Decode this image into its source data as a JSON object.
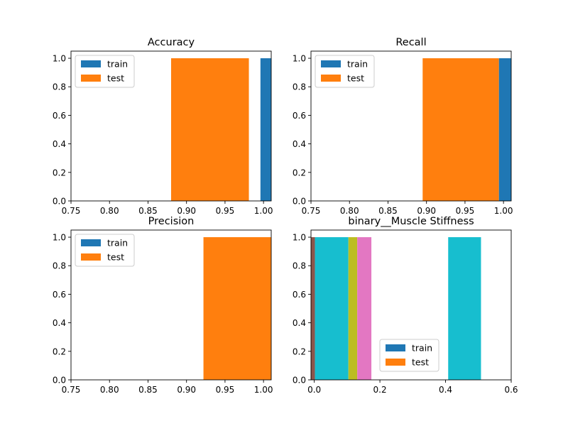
{
  "colors": {
    "train": "#1f77b4",
    "test": "#ff7f0e",
    "brown": "#8c564b",
    "cyan": "#17becf",
    "olive": "#bcbd22",
    "pink": "#e377c2"
  },
  "chart_data": [
    {
      "type": "bar",
      "title": "Accuracy",
      "xlim": [
        0.75,
        1.01
      ],
      "ylim": [
        0,
        1.05
      ],
      "xticks": [
        "0.75",
        "0.80",
        "0.85",
        "0.90",
        "0.95",
        "1.00"
      ],
      "yticks": [
        "0.0",
        "0.2",
        "0.4",
        "0.6",
        "0.8",
        "1.0"
      ],
      "legend": {
        "position": "upper-left",
        "entries": [
          "train",
          "test"
        ]
      },
      "series": [
        {
          "name": "train",
          "color": "train",
          "bins": [
            {
              "x0": 0.996,
              "x1": 1.01,
              "value": 1.0
            }
          ]
        },
        {
          "name": "test",
          "color": "test",
          "bins": [
            {
              "x0": 0.88,
              "x1": 0.981,
              "value": 1.0
            }
          ]
        }
      ]
    },
    {
      "type": "bar",
      "title": "Recall",
      "xlim": [
        0.75,
        1.01
      ],
      "ylim": [
        0,
        1.05
      ],
      "xticks": [
        "0.75",
        "0.80",
        "0.85",
        "0.90",
        "0.95",
        "1.00"
      ],
      "yticks": [
        "0.0",
        "0.2",
        "0.4",
        "0.6",
        "0.8",
        "1.0"
      ],
      "legend": {
        "position": "upper-left",
        "entries": [
          "train",
          "test"
        ]
      },
      "series": [
        {
          "name": "train",
          "color": "train",
          "bins": [
            {
              "x0": 0.994,
              "x1": 1.01,
              "value": 1.0
            }
          ]
        },
        {
          "name": "test",
          "color": "test",
          "bins": [
            {
              "x0": 0.895,
              "x1": 0.994,
              "value": 1.0
            }
          ]
        }
      ]
    },
    {
      "type": "bar",
      "title": "Precision",
      "xlim": [
        0.75,
        1.01
      ],
      "ylim": [
        0,
        1.05
      ],
      "xticks": [
        "0.75",
        "0.80",
        "0.85",
        "0.90",
        "0.95",
        "1.00"
      ],
      "yticks": [
        "0.0",
        "0.2",
        "0.4",
        "0.6",
        "0.8",
        "1.0"
      ],
      "legend": {
        "position": "upper-left",
        "entries": [
          "train",
          "test"
        ]
      },
      "series": [
        {
          "name": "train",
          "color": "train",
          "bins": []
        },
        {
          "name": "test",
          "color": "test",
          "bins": [
            {
              "x0": 0.922,
              "x1": 1.01,
              "value": 1.0
            }
          ]
        }
      ]
    },
    {
      "type": "bar",
      "title": "binary__Muscle Stiffness",
      "xlim": [
        -0.01,
        0.6
      ],
      "ylim": [
        0,
        1.05
      ],
      "xticks": [
        "0.0",
        "0.2",
        "0.4",
        "0.6"
      ],
      "yticks": [
        "0.0",
        "0.2",
        "0.4",
        "0.6",
        "0.8",
        "1.0"
      ],
      "legend": {
        "position": "lower-center",
        "entries": [
          "train",
          "test"
        ]
      },
      "series": [
        {
          "color": "brown",
          "bins": [
            {
              "x0": -0.01,
              "x1": 0.002,
              "value": 1.0
            }
          ]
        },
        {
          "color": "cyan",
          "bins": [
            {
              "x0": 0.002,
              "x1": 0.104,
              "value": 1.0
            },
            {
              "x0": 0.408,
              "x1": 0.508,
              "value": 1.0
            }
          ]
        },
        {
          "color": "olive",
          "bins": [
            {
              "x0": 0.104,
              "x1": 0.131,
              "value": 1.0
            }
          ]
        },
        {
          "color": "pink",
          "bins": [
            {
              "x0": 0.131,
              "x1": 0.174,
              "value": 1.0
            }
          ]
        }
      ]
    }
  ]
}
